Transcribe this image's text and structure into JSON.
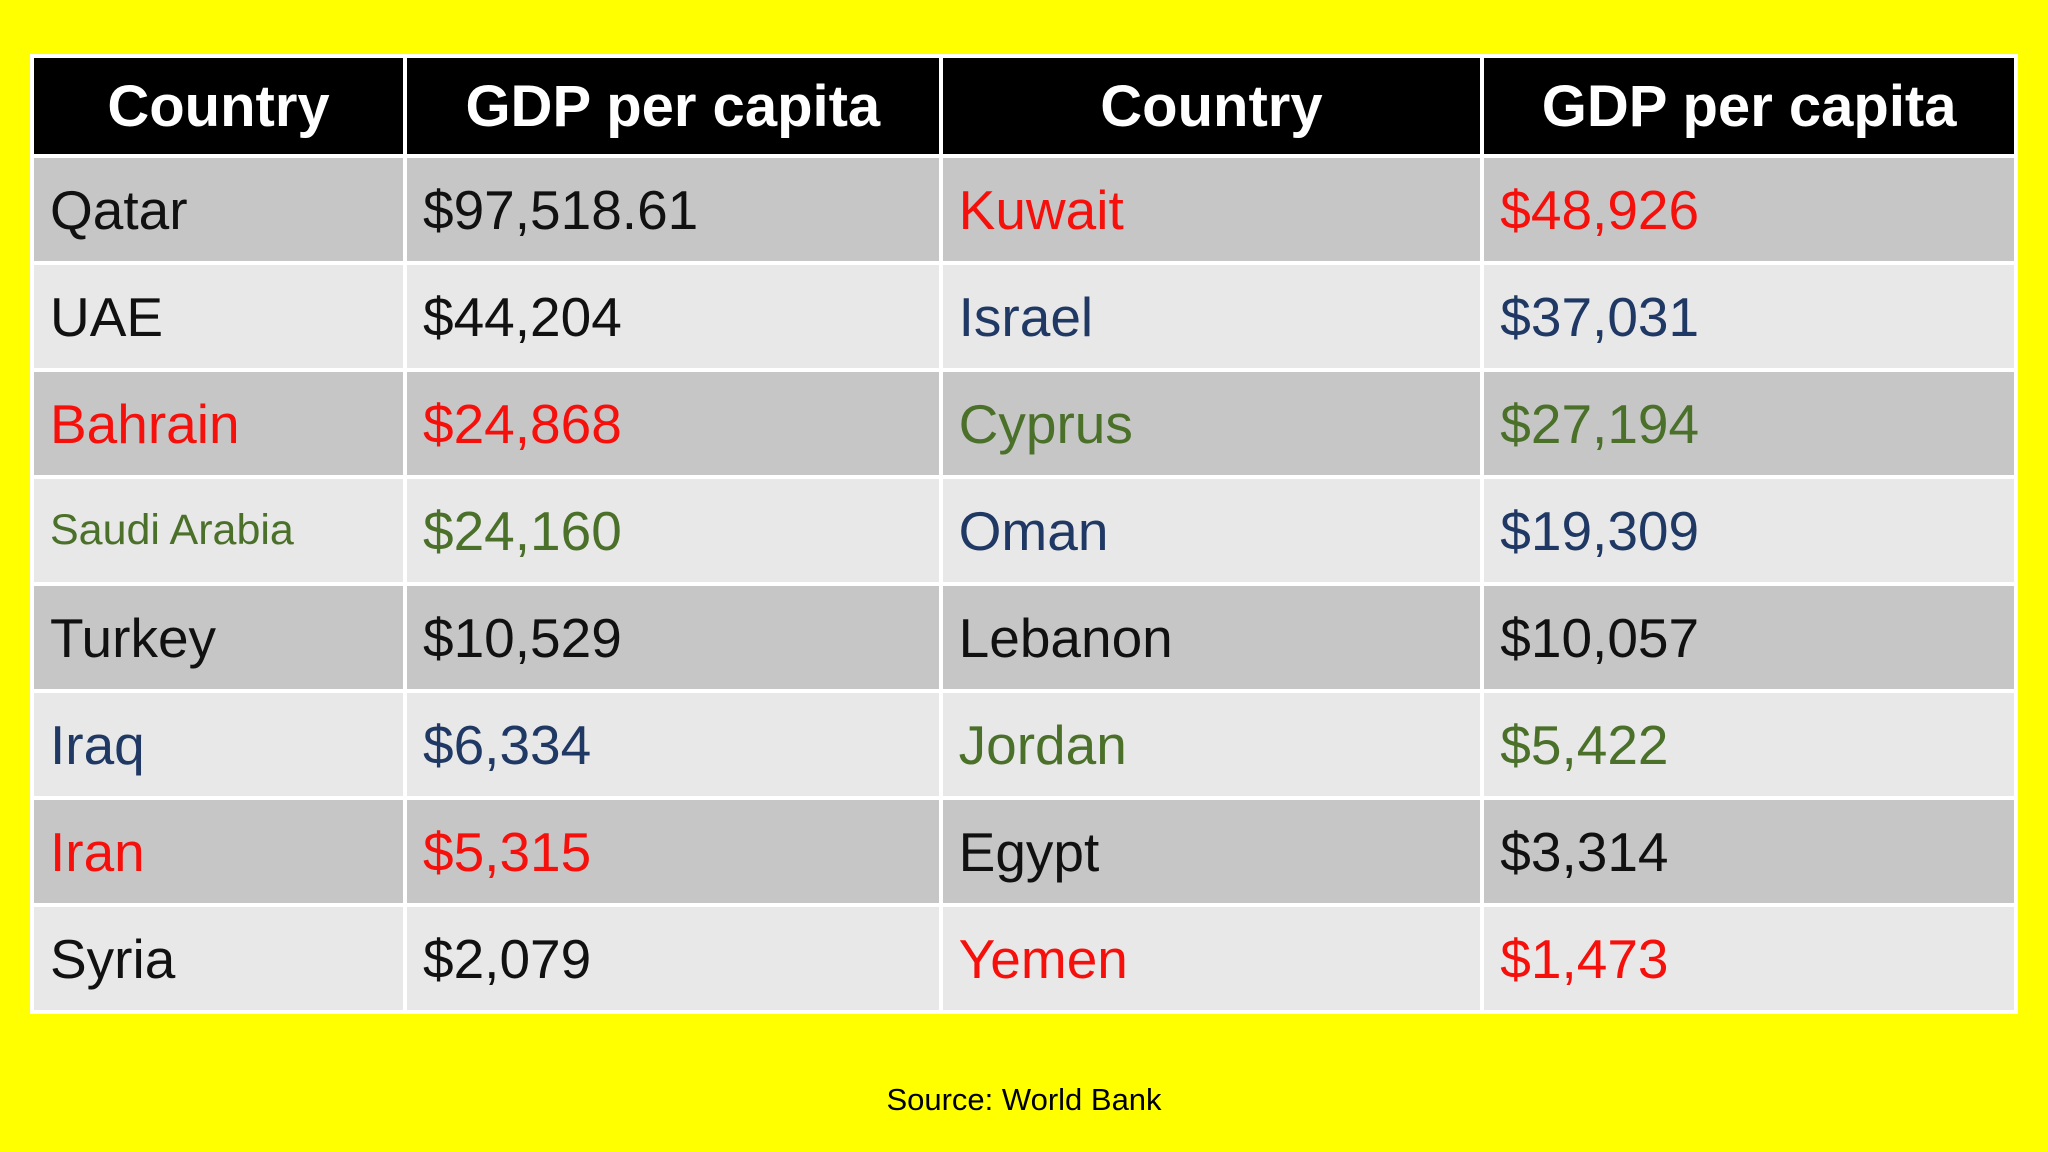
{
  "page": {
    "background": "#FFFF00"
  },
  "table": {
    "header": {
      "background": "#000000",
      "text_color": "#FFFFFF"
    },
    "headers": [
      "Country",
      "GDP per capita",
      "Country",
      "GDP per capita"
    ],
    "row_colors": [
      "#C6C6C6",
      "#E8E8E8"
    ],
    "text_colors": {
      "black": "#111111",
      "red": "#F5100C",
      "navy": "#1F3864",
      "green": "#4A7029"
    },
    "rows": [
      {
        "cells": [
          {
            "text": "Qatar",
            "color": "black"
          },
          {
            "text": "$97,518.61",
            "color": "black"
          },
          {
            "text": "Kuwait",
            "color": "red"
          },
          {
            "text": "$48,926",
            "color": "red"
          }
        ]
      },
      {
        "cells": [
          {
            "text": "UAE",
            "color": "black"
          },
          {
            "text": "$44,204",
            "color": "black"
          },
          {
            "text": "Israel",
            "color": "navy"
          },
          {
            "text": "$37,031",
            "color": "navy"
          }
        ]
      },
      {
        "cells": [
          {
            "text": "Bahrain",
            "color": "red"
          },
          {
            "text": "$24,868",
            "color": "red"
          },
          {
            "text": "Cyprus",
            "color": "green"
          },
          {
            "text": "$27,194",
            "color": "green"
          }
        ]
      },
      {
        "cells": [
          {
            "text": "Saudi Arabia",
            "color": "green",
            "size": "small"
          },
          {
            "text": "$24,160",
            "color": "green"
          },
          {
            "text": "Oman",
            "color": "navy"
          },
          {
            "text": "$19,309",
            "color": "navy"
          }
        ]
      },
      {
        "cells": [
          {
            "text": "Turkey",
            "color": "black"
          },
          {
            "text": "$10,529",
            "color": "black"
          },
          {
            "text": "Lebanon",
            "color": "black"
          },
          {
            "text": "$10,057",
            "color": "black"
          }
        ]
      },
      {
        "cells": [
          {
            "text": "Iraq",
            "color": "navy"
          },
          {
            "text": "$6,334",
            "color": "navy"
          },
          {
            "text": "Jordan",
            "color": "green"
          },
          {
            "text": "$5,422",
            "color": "green"
          }
        ]
      },
      {
        "cells": [
          {
            "text": "Iran",
            "color": "red"
          },
          {
            "text": "$5,315",
            "color": "red"
          },
          {
            "text": "Egypt",
            "color": "black"
          },
          {
            "text": "$3,314",
            "color": "black"
          }
        ]
      },
      {
        "cells": [
          {
            "text": "Syria",
            "color": "black"
          },
          {
            "text": "$2,079",
            "color": "black"
          },
          {
            "text": "Yemen",
            "color": "red"
          },
          {
            "text": "$1,473",
            "color": "red"
          }
        ]
      }
    ]
  },
  "footer": {
    "source": "Source: World Bank"
  },
  "chart_data": {
    "type": "table",
    "title": "GDP per capita by country",
    "columns": [
      "Country",
      "GDP per capita"
    ],
    "records": [
      {
        "country": "Qatar",
        "gdp_per_capita": 97518.61,
        "display": "$97,518.61"
      },
      {
        "country": "UAE",
        "gdp_per_capita": 44204,
        "display": "$44,204"
      },
      {
        "country": "Bahrain",
        "gdp_per_capita": 24868,
        "display": "$24,868"
      },
      {
        "country": "Saudi Arabia",
        "gdp_per_capita": 24160,
        "display": "$24,160"
      },
      {
        "country": "Turkey",
        "gdp_per_capita": 10529,
        "display": "$10,529"
      },
      {
        "country": "Iraq",
        "gdp_per_capita": 6334,
        "display": "$6,334"
      },
      {
        "country": "Iran",
        "gdp_per_capita": 5315,
        "display": "$5,315"
      },
      {
        "country": "Syria",
        "gdp_per_capita": 2079,
        "display": "$2,079"
      },
      {
        "country": "Kuwait",
        "gdp_per_capita": 48926,
        "display": "$48,926"
      },
      {
        "country": "Israel",
        "gdp_per_capita": 37031,
        "display": "$37,031"
      },
      {
        "country": "Cyprus",
        "gdp_per_capita": 27194,
        "display": "$27,194"
      },
      {
        "country": "Oman",
        "gdp_per_capita": 19309,
        "display": "$19,309"
      },
      {
        "country": "Lebanon",
        "gdp_per_capita": 10057,
        "display": "$10,057"
      },
      {
        "country": "Jordan",
        "gdp_per_capita": 5422,
        "display": "$5,422"
      },
      {
        "country": "Egypt",
        "gdp_per_capita": 3314,
        "display": "$3,314"
      },
      {
        "country": "Yemen",
        "gdp_per_capita": 1473,
        "display": "$1,473"
      }
    ],
    "source": "World Bank",
    "layout": "two side-by-side country/value column pairs, 8 rows, alternating gray row shading, black header row"
  }
}
